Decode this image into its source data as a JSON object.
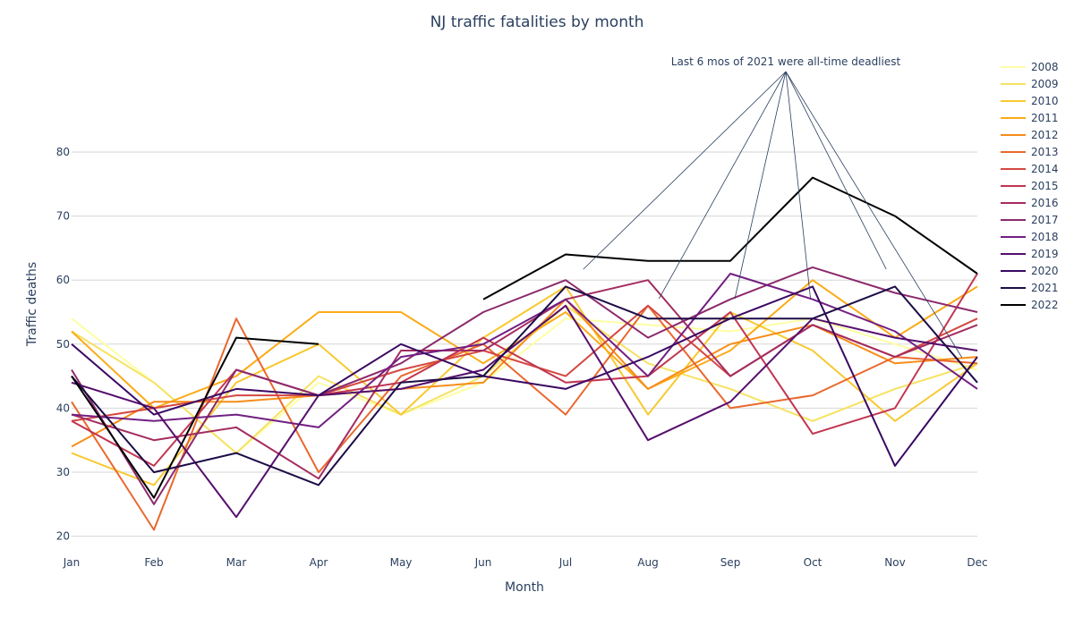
{
  "chart_data": {
    "type": "line",
    "title": "NJ traffic fatalities by month",
    "xlabel": "Month",
    "ylabel": "Traffic deaths",
    "categories": [
      "Jan",
      "Feb",
      "Mar",
      "Apr",
      "May",
      "Jun",
      "Jul",
      "Aug",
      "Sep",
      "Oct",
      "Nov",
      "Dec"
    ],
    "yticks": [
      20,
      30,
      40,
      50,
      60,
      70,
      80
    ],
    "ylim": [
      18,
      92
    ],
    "grid": true,
    "legend_position": "right",
    "annotation": {
      "text": "Last 6 mos of 2021 were all-time deadliest",
      "target_series": "2021",
      "target_months": [
        "Jul",
        "Aug",
        "Sep",
        "Oct",
        "Nov",
        "Dec"
      ]
    },
    "series": [
      {
        "name": "2008",
        "color": "#fcffa4",
        "values": [
          54,
          44,
          33,
          44,
          39,
          44,
          54,
          53,
          52,
          54,
          50,
          46
        ]
      },
      {
        "name": "2009",
        "color": "#f6e263",
        "values": [
          52,
          44,
          33,
          45,
          39,
          45,
          56,
          47,
          43,
          38,
          43,
          47
        ]
      },
      {
        "name": "2010",
        "color": "#f8c932",
        "values": [
          33,
          28,
          44,
          50,
          39,
          51,
          59,
          39,
          55,
          49,
          38,
          47
        ]
      },
      {
        "name": "2011",
        "color": "#fbab17",
        "values": [
          52,
          40,
          45,
          55,
          55,
          47,
          55,
          43,
          49,
          60,
          51,
          59
        ]
      },
      {
        "name": "2012",
        "color": "#f68d1a",
        "values": [
          34,
          41,
          41,
          42,
          43,
          44,
          57,
          43,
          50,
          53,
          47,
          48
        ]
      },
      {
        "name": "2013",
        "color": "#e9682d",
        "values": [
          41,
          21,
          54,
          30,
          45,
          50,
          39,
          56,
          40,
          42,
          48,
          47
        ]
      },
      {
        "name": "2014",
        "color": "#d44842",
        "values": [
          38,
          40,
          42,
          42,
          46,
          49,
          45,
          56,
          45,
          53,
          48,
          54
        ]
      },
      {
        "name": "2015",
        "color": "#c13651",
        "values": [
          38,
          31,
          46,
          42,
          44,
          51,
          44,
          45,
          55,
          36,
          40,
          61
        ]
      },
      {
        "name": "2016",
        "color": "#a42c60",
        "values": [
          39,
          35,
          37,
          29,
          49,
          49,
          57,
          60,
          45,
          53,
          48,
          53
        ]
      },
      {
        "name": "2017",
        "color": "#8c2a6c",
        "values": [
          46,
          25,
          46,
          42,
          47,
          55,
          60,
          51,
          57,
          62,
          58,
          55
        ]
      },
      {
        "name": "2018",
        "color": "#721f81",
        "values": [
          39,
          38,
          39,
          37,
          48,
          50,
          57,
          45,
          61,
          57,
          52,
          43
        ]
      },
      {
        "name": "2019",
        "color": "#560f6d",
        "values": [
          44,
          40,
          23,
          42,
          43,
          46,
          56,
          35,
          41,
          54,
          51,
          49
        ]
      },
      {
        "name": "2020",
        "color": "#3a0963",
        "values": [
          50,
          39,
          43,
          42,
          50,
          45,
          43,
          48,
          54,
          59,
          31,
          48
        ]
      },
      {
        "name": "2021",
        "color": "#1d0c47",
        "values": [
          45,
          30,
          33,
          28,
          44,
          45,
          59,
          54,
          54,
          54,
          59,
          44
        ]
      },
      {
        "name": "2022",
        "color": "#000000",
        "values": [
          45,
          26,
          51,
          50,
          null,
          57,
          64,
          63,
          63,
          76,
          70,
          61
        ]
      }
    ]
  }
}
